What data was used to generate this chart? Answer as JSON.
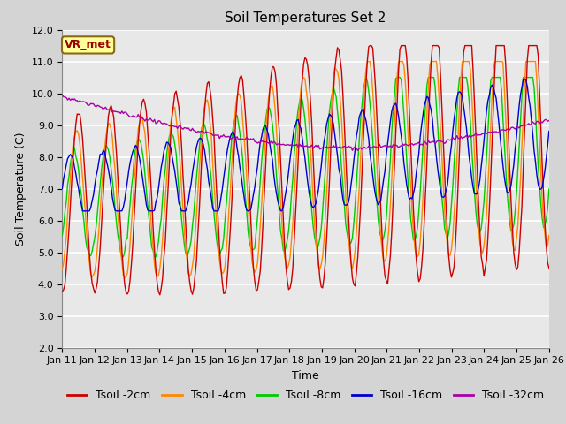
{
  "title": "Soil Temperatures Set 2",
  "xlabel": "Time",
  "ylabel": "Soil Temperature (C)",
  "ylim": [
    2.0,
    12.0
  ],
  "yticks": [
    2.0,
    3.0,
    4.0,
    5.0,
    6.0,
    7.0,
    8.0,
    9.0,
    10.0,
    11.0,
    12.0
  ],
  "xtick_labels": [
    "Jan 11",
    "Jan 12",
    "Jan 13",
    "Jan 14",
    "Jan 15",
    "Jan 16",
    "Jan 17",
    "Jan 18",
    "Jan 19",
    "Jan 20",
    "Jan 21",
    "Jan 22",
    "Jan 23",
    "Jan 24",
    "Jan 25",
    "Jan 26"
  ],
  "line_colors": [
    "#cc0000",
    "#ff8800",
    "#00cc00",
    "#0000cc",
    "#aa00aa"
  ],
  "line_labels": [
    "Tsoil -2cm",
    "Tsoil -4cm",
    "Tsoil -8cm",
    "Tsoil -16cm",
    "Tsoil -32cm"
  ],
  "annotation_text": "VR_met",
  "annotation_bg": "#ffff99",
  "annotation_border": "#8B6914",
  "fig_bg": "#d4d4d4",
  "plot_bg": "#e8e8e8",
  "grid_color": "#ffffff",
  "title_fontsize": 11,
  "axis_fontsize": 9,
  "tick_fontsize": 8,
  "legend_fontsize": 9
}
